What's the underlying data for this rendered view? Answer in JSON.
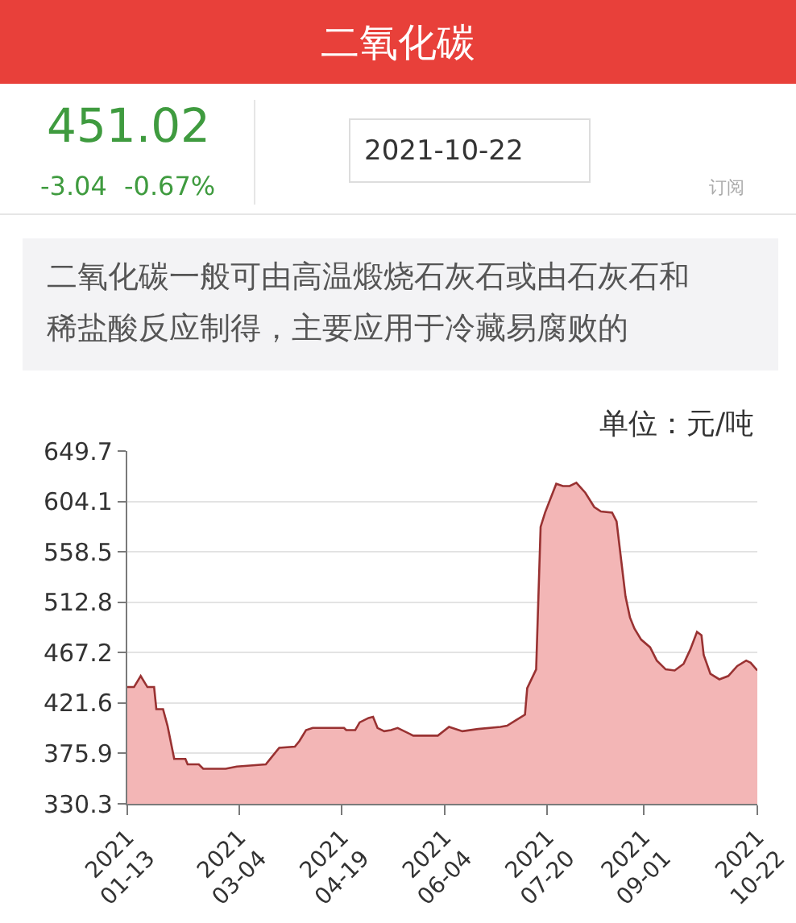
{
  "chart_data": {
    "type": "area",
    "title": "二氧化碳",
    "annotations": [
      "451.02",
      "-3.04",
      "-0.67%",
      "2021-10-22",
      "订阅",
      "二氧化碳一般可由高温煅烧石灰石或由石灰石和",
      "稀盐酸反应制得，主要应用于冷藏易腐败的",
      "单位：元/吨"
    ],
    "x": [
      "2021-01-13",
      "2021-01-16",
      "2021-01-19",
      "2021-01-22",
      "2021-01-25",
      "2021-01-26",
      "2021-01-29",
      "2021-01-31",
      "2021-02-03",
      "2021-02-08",
      "2021-02-09",
      "2021-02-14",
      "2021-02-16",
      "2021-02-26",
      "2021-03-03",
      "2021-03-16",
      "2021-03-18",
      "2021-03-22",
      "2021-03-29",
      "2021-03-31",
      "2021-04-03",
      "2021-04-06",
      "2021-04-20",
      "2021-04-21",
      "2021-04-25",
      "2021-04-27",
      "2021-05-01",
      "2021-05-03",
      "2021-05-05",
      "2021-05-08",
      "2021-05-11",
      "2021-05-14",
      "2021-05-21",
      "2021-06-01",
      "2021-06-06",
      "2021-06-12",
      "2021-06-19",
      "2021-06-29",
      "2021-07-02",
      "2021-07-06",
      "2021-07-10",
      "2021-07-11",
      "2021-07-15",
      "2021-07-17",
      "2021-07-19",
      "2021-07-24",
      "2021-07-27",
      "2021-07-30",
      "2021-08-02",
      "2021-08-06",
      "2021-08-10",
      "2021-08-13",
      "2021-08-18",
      "2021-08-20",
      "2021-08-22",
      "2021-08-24",
      "2021-08-26",
      "2021-08-28",
      "2021-08-31",
      "2021-09-04",
      "2021-09-07",
      "2021-09-11",
      "2021-09-15",
      "2021-09-19",
      "2021-09-22",
      "2021-09-25",
      "2021-09-27",
      "2021-09-28",
      "2021-10-01",
      "2021-10-05",
      "2021-10-09",
      "2021-10-13",
      "2021-10-17",
      "2021-10-19",
      "2021-10-22"
    ],
    "values": [
      436,
      436,
      446,
      436,
      436,
      416,
      416,
      401,
      371,
      371,
      366,
      366,
      362,
      362,
      364,
      366,
      371,
      381,
      382,
      387,
      397,
      399,
      399,
      397,
      397,
      404,
      408,
      409,
      399,
      396,
      397,
      399,
      392,
      392,
      400,
      396,
      398,
      400,
      401,
      406,
      411,
      435,
      452,
      581,
      594,
      620,
      618,
      618,
      621,
      612,
      599,
      595,
      594,
      586,
      552,
      518,
      499,
      489,
      479,
      472,
      460,
      452,
      451,
      457,
      470,
      486,
      483,
      465,
      448,
      443,
      446,
      455,
      460,
      458,
      451
    ],
    "color": "#f3b6b6",
    "xlim": [
      "2021-01-13",
      "2021-10-22"
    ],
    "xticks": [
      {
        "value": "2021-01-13",
        "label": "2021\n01-13"
      },
      {
        "value": "2021-03-04",
        "label": "2021\n03-04"
      },
      {
        "value": "2021-04-19",
        "label": "2021\n04-19"
      },
      {
        "value": "2021-06-04",
        "label": "2021\n06-04"
      },
      {
        "value": "2021-07-20",
        "label": "2021\n07-20"
      },
      {
        "value": "2021-09-01",
        "label": "2021\n09-01"
      },
      {
        "value": "2021-10-22",
        "label": "2021\n10-22"
      }
    ],
    "ylim": [
      330.3,
      649.7
    ],
    "yticks": [
      330.3,
      375.9,
      421.6,
      467.2,
      512.8,
      558.5,
      604.1,
      649.7
    ],
    "grid": "y",
    "marker": "none",
    "line_style": "solid"
  }
}
